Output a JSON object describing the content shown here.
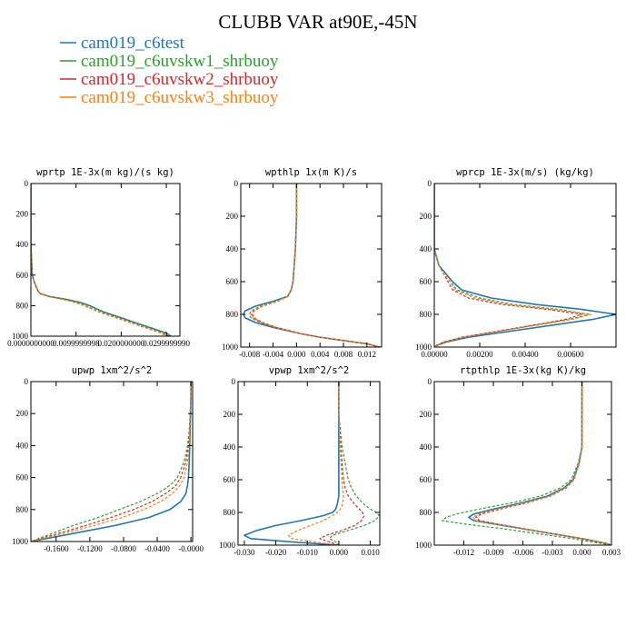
{
  "figure": {
    "title": "CLUBB VAR at90E,-45N"
  },
  "legend": [
    {
      "label": "cam019_c6test",
      "color": "#1f77b4",
      "dash": "solid"
    },
    {
      "label": "cam019_c6uvskw1_shrbuoy",
      "color": "#2ca02c",
      "dash": "dashed"
    },
    {
      "label": "cam019_c6uvskw2_shrbuoy",
      "color": "#d62728",
      "dash": "dashed"
    },
    {
      "label": "cam019_c6uvskw3_shrbuoy",
      "color": "#ff7f0e",
      "dash": "dashed"
    }
  ],
  "chart_data": [
    {
      "type": "line",
      "title": "wprtp  1E-3x(m kg)/(s kg)",
      "xlim": [
        0,
        0.033
      ],
      "ylim": [
        1000,
        0
      ],
      "xticks": [
        0,
        0.01,
        0.02,
        0.03
      ],
      "xtick_labels": [
        "0.0000000000",
        "0.0099999998",
        "0.0200000000",
        "0.0299999990"
      ],
      "yticks": [
        0,
        200,
        400,
        600,
        800,
        1000
      ],
      "ytick_labels": [
        "0",
        "200",
        "400",
        "600",
        "800",
        "1000"
      ],
      "y": [
        0,
        200,
        400,
        600,
        650,
        700,
        720,
        740,
        760,
        780,
        800,
        820,
        840,
        860,
        880,
        900,
        920,
        940,
        960,
        980,
        1000
      ],
      "series": [
        {
          "color": "#1f77b4",
          "dash": "solid",
          "x": [
            0,
            0,
            0,
            0.0003,
            0.0008,
            0.0015,
            0.002,
            0.004,
            0.008,
            0.011,
            0.013,
            0.0145,
            0.016,
            0.018,
            0.02,
            0.022,
            0.024,
            0.026,
            0.028,
            0.03,
            0.031
          ]
        },
        {
          "color": "#2ca02c",
          "dash": "dashed",
          "x": [
            0,
            0,
            0,
            0.0003,
            0.0008,
            0.0015,
            0.002,
            0.004,
            0.008,
            0.0108,
            0.0128,
            0.0143,
            0.0158,
            0.0178,
            0.0198,
            0.0218,
            0.0238,
            0.0258,
            0.0278,
            0.0298,
            0.031
          ]
        },
        {
          "color": "#d62728",
          "dash": "dashed",
          "x": [
            0,
            0,
            0,
            0.0003,
            0.0008,
            0.0015,
            0.002,
            0.004,
            0.0075,
            0.01,
            0.012,
            0.0135,
            0.015,
            0.017,
            0.019,
            0.021,
            0.023,
            0.025,
            0.027,
            0.029,
            0.0305
          ]
        },
        {
          "color": "#ff7f0e",
          "dash": "dashed",
          "x": [
            0,
            0,
            0,
            0.0003,
            0.0008,
            0.0015,
            0.002,
            0.0038,
            0.0072,
            0.0098,
            0.0118,
            0.0133,
            0.0148,
            0.0168,
            0.0188,
            0.0208,
            0.0228,
            0.0248,
            0.0268,
            0.0288,
            0.03
          ]
        }
      ]
    },
    {
      "type": "line",
      "title": "wpthlp  1x(m K)/s",
      "xlim": [
        -0.0095,
        0.0145
      ],
      "ylim": [
        1000,
        0
      ],
      "xticks": [
        -0.008,
        -0.004,
        0,
        0.004,
        0.008,
        0.012
      ],
      "xtick_labels": [
        "-0.008",
        "-0.004",
        "0.000",
        "0.004",
        "0.008",
        "0.012"
      ],
      "yticks": [
        0,
        200,
        400,
        600,
        800,
        1000
      ],
      "ytick_labels": [
        "0",
        "200",
        "400",
        "600",
        "800",
        "1000"
      ],
      "y": [
        0,
        200,
        400,
        500,
        600,
        650,
        690,
        720,
        750,
        780,
        800,
        820,
        850,
        880,
        900,
        920,
        940,
        960,
        980,
        1000
      ],
      "series": [
        {
          "color": "#1f77b4",
          "dash": "solid",
          "x": [
            0,
            0,
            -0.0002,
            -0.0004,
            -0.0006,
            -0.0009,
            -0.0015,
            -0.004,
            -0.007,
            -0.0088,
            -0.009,
            -0.0088,
            -0.007,
            -0.004,
            -0.0015,
            0.001,
            0.004,
            0.008,
            0.012,
            0.0142
          ]
        },
        {
          "color": "#2ca02c",
          "dash": "dashed",
          "x": [
            0,
            0,
            -0.0002,
            -0.0004,
            -0.0006,
            -0.0009,
            -0.0015,
            -0.0035,
            -0.0062,
            -0.0078,
            -0.008,
            -0.0078,
            -0.0062,
            -0.0036,
            -0.0013,
            0.001,
            0.004,
            0.008,
            0.012,
            0.0142
          ]
        },
        {
          "color": "#d62728",
          "dash": "dashed",
          "x": [
            0,
            0,
            -0.0002,
            -0.0004,
            -0.0006,
            -0.0009,
            -0.0015,
            -0.0032,
            -0.0058,
            -0.0073,
            -0.0075,
            -0.0073,
            -0.0058,
            -0.0034,
            -0.0012,
            0.001,
            0.004,
            0.008,
            0.012,
            0.0142
          ]
        },
        {
          "color": "#ff7f0e",
          "dash": "dashed",
          "x": [
            0,
            0,
            -0.0002,
            -0.0004,
            -0.0006,
            -0.0009,
            -0.0015,
            -0.0033,
            -0.006,
            -0.0075,
            -0.0077,
            -0.0075,
            -0.006,
            -0.0035,
            -0.0012,
            0.001,
            0.004,
            0.008,
            0.012,
            0.0142
          ]
        }
      ]
    },
    {
      "type": "line",
      "title": "wprcp  1E-3x(m/s) (kg/kg)",
      "xlim": [
        0,
        0.008
      ],
      "ylim": [
        1000,
        0
      ],
      "xticks": [
        0,
        0.002,
        0.004,
        0.006
      ],
      "xtick_labels": [
        "0.00000",
        "0.00200",
        "0.00400",
        "0.00600"
      ],
      "yticks": [
        0,
        200,
        400,
        600,
        800,
        1000
      ],
      "ytick_labels": [
        "0",
        "200",
        "400",
        "600",
        "800",
        "1000"
      ],
      "y": [
        0,
        200,
        400,
        500,
        550,
        600,
        650,
        700,
        740,
        770,
        800,
        830,
        860,
        900,
        940,
        970,
        990,
        1000
      ],
      "series": [
        {
          "color": "#1f77b4",
          "dash": "solid",
          "x": [
            0,
            0,
            0,
            0.0002,
            0.0005,
            0.0008,
            0.0012,
            0.0025,
            0.0045,
            0.0065,
            0.008,
            0.007,
            0.0055,
            0.0035,
            0.0015,
            0.0005,
            0.0001,
            0
          ]
        },
        {
          "color": "#2ca02c",
          "dash": "dashed",
          "x": [
            0,
            0,
            0,
            0.0002,
            0.0004,
            0.0007,
            0.001,
            0.002,
            0.0035,
            0.0055,
            0.0068,
            0.006,
            0.0047,
            0.003,
            0.0013,
            0.0004,
            0.0001,
            0
          ]
        },
        {
          "color": "#d62728",
          "dash": "dashed",
          "x": [
            0,
            0,
            0,
            0.0002,
            0.0004,
            0.0006,
            0.0008,
            0.0015,
            0.003,
            0.005,
            0.0065,
            0.0058,
            0.0046,
            0.0029,
            0.0012,
            0.0004,
            0.0001,
            0
          ]
        },
        {
          "color": "#ff7f0e",
          "dash": "dashed",
          "x": [
            0,
            0,
            0,
            0.0002,
            0.0004,
            0.0007,
            0.0009,
            0.0018,
            0.0033,
            0.0053,
            0.0069,
            0.0061,
            0.0048,
            0.003,
            0.0013,
            0.0004,
            0.0001,
            0
          ]
        }
      ]
    },
    {
      "type": "line",
      "title": "upwp   1xm^2/s^2",
      "xlim": [
        -0.19,
        0.002
      ],
      "ylim": [
        1000,
        0
      ],
      "xticks": [
        -0.16,
        -0.12,
        -0.08,
        -0.04,
        0
      ],
      "xtick_labels": [
        "-0.1600",
        "-0.1200",
        "-0.0800",
        "-0.0400",
        "-0.0000"
      ],
      "yticks": [
        0,
        200,
        400,
        600,
        800,
        1000
      ],
      "ytick_labels": [
        "0",
        "200",
        "400",
        "600",
        "800",
        "1000"
      ],
      "y": [
        0,
        100,
        200,
        300,
        400,
        500,
        600,
        650,
        700,
        750,
        800,
        850,
        900,
        950,
        1000
      ],
      "series": [
        {
          "color": "#1f77b4",
          "dash": "solid",
          "x": [
            0,
            0,
            -0.0005,
            -0.001,
            -0.0015,
            -0.002,
            -0.003,
            -0.004,
            -0.006,
            -0.012,
            -0.025,
            -0.05,
            -0.09,
            -0.14,
            -0.19
          ]
        },
        {
          "color": "#2ca02c",
          "dash": "dashed",
          "x": [
            0,
            0,
            -0.001,
            -0.002,
            -0.004,
            -0.008,
            -0.016,
            -0.025,
            -0.04,
            -0.06,
            -0.085,
            -0.11,
            -0.14,
            -0.165,
            -0.19
          ]
        },
        {
          "color": "#d62728",
          "dash": "dashed",
          "x": [
            0,
            0,
            -0.001,
            -0.0015,
            -0.003,
            -0.006,
            -0.012,
            -0.018,
            -0.03,
            -0.046,
            -0.068,
            -0.095,
            -0.125,
            -0.158,
            -0.19
          ]
        },
        {
          "color": "#ff7f0e",
          "dash": "dashed",
          "x": [
            0,
            0,
            -0.0008,
            -0.0012,
            -0.002,
            -0.004,
            -0.008,
            -0.013,
            -0.022,
            -0.036,
            -0.056,
            -0.082,
            -0.115,
            -0.152,
            -0.19
          ]
        }
      ]
    },
    {
      "type": "line",
      "title": "vpwp   1xm^2/s^2",
      "xlim": [
        -0.032,
        0.013
      ],
      "ylim": [
        1000,
        0
      ],
      "xticks": [
        -0.03,
        -0.02,
        -0.01,
        0,
        0.01
      ],
      "xtick_labels": [
        "-0.030",
        "-0.020",
        "-0.010",
        "0.000",
        "0.010"
      ],
      "yticks": [
        0,
        200,
        400,
        600,
        800,
        1000
      ],
      "ytick_labels": [
        "0",
        "200",
        "400",
        "600",
        "800",
        "1000"
      ],
      "y": [
        0,
        100,
        200,
        300,
        400,
        500,
        600,
        650,
        700,
        750,
        780,
        800,
        820,
        850,
        880,
        910,
        940,
        960,
        980,
        1000
      ],
      "series": [
        {
          "color": "#1f77b4",
          "dash": "solid",
          "x": [
            0,
            0,
            0,
            0,
            0,
            0,
            0,
            0,
            0,
            -0.0005,
            -0.001,
            -0.002,
            -0.005,
            -0.012,
            -0.02,
            -0.026,
            -0.03,
            -0.028,
            -0.015,
            0
          ]
        },
        {
          "color": "#2ca02c",
          "dash": "dashed",
          "x": [
            0,
            0,
            0,
            0.0005,
            0.001,
            0.002,
            0.003,
            0.004,
            0.0055,
            0.008,
            0.01,
            0.012,
            0.0128,
            0.0115,
            0.008,
            0.003,
            -0.002,
            -0.003,
            -0.001,
            0
          ]
        },
        {
          "color": "#d62728",
          "dash": "dashed",
          "x": [
            0,
            0,
            0,
            0.0003,
            0.0006,
            0.001,
            0.0015,
            0.002,
            0.003,
            0.005,
            0.0065,
            0.0075,
            0.008,
            0.0072,
            0.005,
            0.001,
            -0.004,
            -0.006,
            -0.003,
            0
          ]
        },
        {
          "color": "#ff7f0e",
          "dash": "dashed",
          "x": [
            0,
            0,
            0,
            0.0002,
            0.0004,
            0.0007,
            0.001,
            0.0012,
            0.0015,
            0.0012,
            0.0005,
            -0.0005,
            -0.002,
            -0.005,
            -0.009,
            -0.013,
            -0.016,
            -0.015,
            -0.008,
            0
          ]
        }
      ]
    },
    {
      "type": "line",
      "title": "rtpthlp  1E-3x(kg K)/kg",
      "xlim": [
        -0.015,
        0.003
      ],
      "ylim": [
        1000,
        0
      ],
      "xticks": [
        -0.012,
        -0.009,
        -0.006,
        -0.003,
        0,
        0.003
      ],
      "xtick_labels": [
        "-0.012",
        "-0.009",
        "-0.006",
        "-0.003",
        "0.000",
        "0.003"
      ],
      "yticks": [
        0,
        200,
        400,
        600,
        800,
        1000
      ],
      "ytick_labels": [
        "0",
        "200",
        "400",
        "600",
        "800",
        "1000"
      ],
      "y": [
        0,
        200,
        400,
        500,
        600,
        650,
        700,
        740,
        780,
        810,
        830,
        850,
        870,
        900,
        930,
        960,
        990,
        1000
      ],
      "series": [
        {
          "color": "#1f77b4",
          "dash": "solid",
          "x": [
            0,
            0,
            0,
            -0.0003,
            -0.0009,
            -0.0018,
            -0.0035,
            -0.006,
            -0.009,
            -0.011,
            -0.0115,
            -0.011,
            -0.009,
            -0.006,
            -0.003,
            0,
            0.0025,
            0.003
          ]
        },
        {
          "color": "#2ca02c",
          "dash": "dashed",
          "x": [
            0,
            0,
            0,
            -0.0004,
            -0.0011,
            -0.0022,
            -0.0042,
            -0.007,
            -0.0105,
            -0.0128,
            -0.0138,
            -0.0142,
            -0.012,
            -0.008,
            -0.0045,
            -0.001,
            0.002,
            0.003
          ]
        },
        {
          "color": "#d62728",
          "dash": "dashed",
          "x": [
            0,
            0,
            0,
            -0.0003,
            -0.0008,
            -0.0016,
            -0.0032,
            -0.0055,
            -0.0083,
            -0.0102,
            -0.0108,
            -0.0104,
            -0.0086,
            -0.0058,
            -0.0029,
            0,
            0.0025,
            0.003
          ]
        },
        {
          "color": "#ff7f0e",
          "dash": "dashed",
          "x": [
            0,
            0,
            0,
            -0.0003,
            -0.0008,
            -0.0017,
            -0.0033,
            -0.0057,
            -0.0086,
            -0.0105,
            -0.0111,
            -0.0107,
            -0.0088,
            -0.0059,
            -0.003,
            0,
            0.0025,
            0.003
          ]
        }
      ]
    }
  ]
}
